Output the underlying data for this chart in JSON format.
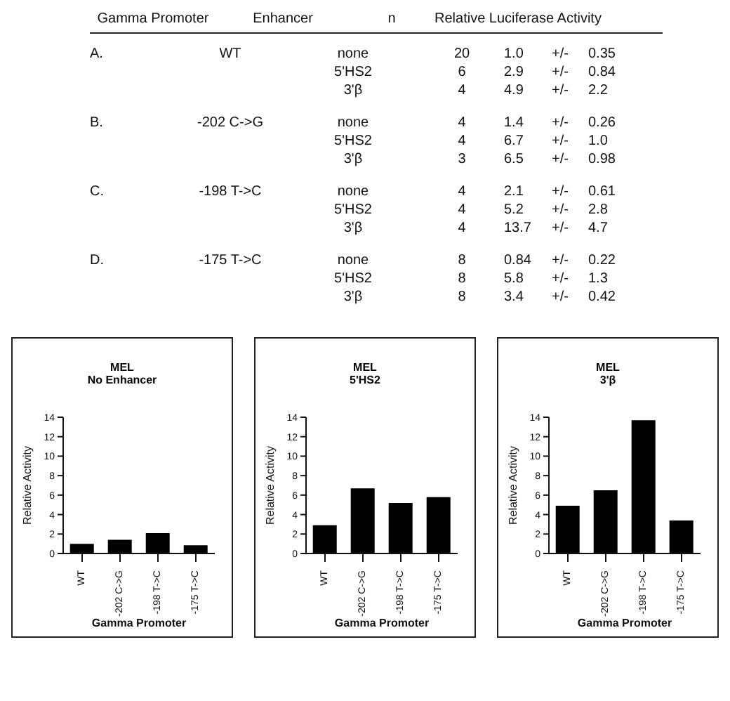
{
  "chart_data": [
    {
      "type": "other",
      "annotations": [
        "Gamma Promoter",
        "Enhancer",
        "n",
        "Relative Luciferase Activity",
        "A.",
        "WT",
        "none",
        "20",
        "1.0",
        "+/-",
        "0.35",
        "5'HS2",
        "6",
        "2.9",
        "+/-",
        "0.84",
        "3'β",
        "4",
        "4.9",
        "+/-",
        "2.2",
        "B.",
        "-202 C->G",
        "none",
        "4",
        "1.4",
        "+/-",
        "0.26",
        "5'HS2",
        "4",
        "6.7",
        "+/-",
        "1.0",
        "3'β",
        "3",
        "6.5",
        "+/-",
        "0.98",
        "C.",
        "-198 T->C",
        "none",
        "4",
        "2.1",
        "+/-",
        "0.61",
        "5'HS2",
        "4",
        "5.2",
        "+/-",
        "2.8",
        "3'β",
        "4",
        "13.7",
        "+/-",
        "4.7",
        "D.",
        "-175 T->C",
        "none",
        "8",
        "0.84",
        "+/-",
        "0.22",
        "5'HS2",
        "8",
        "5.8",
        "+/-",
        "1.3",
        "3'β",
        "8",
        "3.4",
        "+/-",
        "0.42"
      ]
    },
    {
      "type": "bar",
      "title": "MEL",
      "subtitle": "No Enhancer",
      "xlabel": "Gamma Promoter",
      "ylabel": "Relative Activity",
      "categories": [
        "WT",
        "-202 C->G",
        "-198 T->C",
        "-175 T->C"
      ],
      "values": [
        1.0,
        1.4,
        2.1,
        0.84
      ],
      "color": "#000000",
      "ylim": [
        0,
        14
      ],
      "yticks": [
        0,
        2,
        4,
        6,
        8,
        10,
        12,
        14
      ]
    },
    {
      "type": "bar",
      "title": "MEL",
      "subtitle": "5'HS2",
      "xlabel": "Gamma Promoter",
      "ylabel": "Relative Activity",
      "categories": [
        "WT",
        "-202 C->G",
        "-198 T->C",
        "-175 T->C"
      ],
      "values": [
        2.9,
        6.7,
        5.2,
        5.8
      ],
      "color": "#000000",
      "ylim": [
        0,
        14
      ],
      "yticks": [
        0,
        2,
        4,
        6,
        8,
        10,
        12,
        14
      ]
    },
    {
      "type": "bar",
      "title": "MEL",
      "subtitle": "3'β",
      "xlabel": "Gamma Promoter",
      "ylabel": "Relative Activity",
      "categories": [
        "WT",
        "-202 C->G",
        "-198 T->C",
        "-175 T->C"
      ],
      "values": [
        4.9,
        6.5,
        13.7,
        3.4
      ],
      "color": "#000000",
      "ylim": [
        0,
        14
      ],
      "yticks": [
        0,
        2,
        4,
        6,
        8,
        10,
        12,
        14
      ]
    }
  ]
}
